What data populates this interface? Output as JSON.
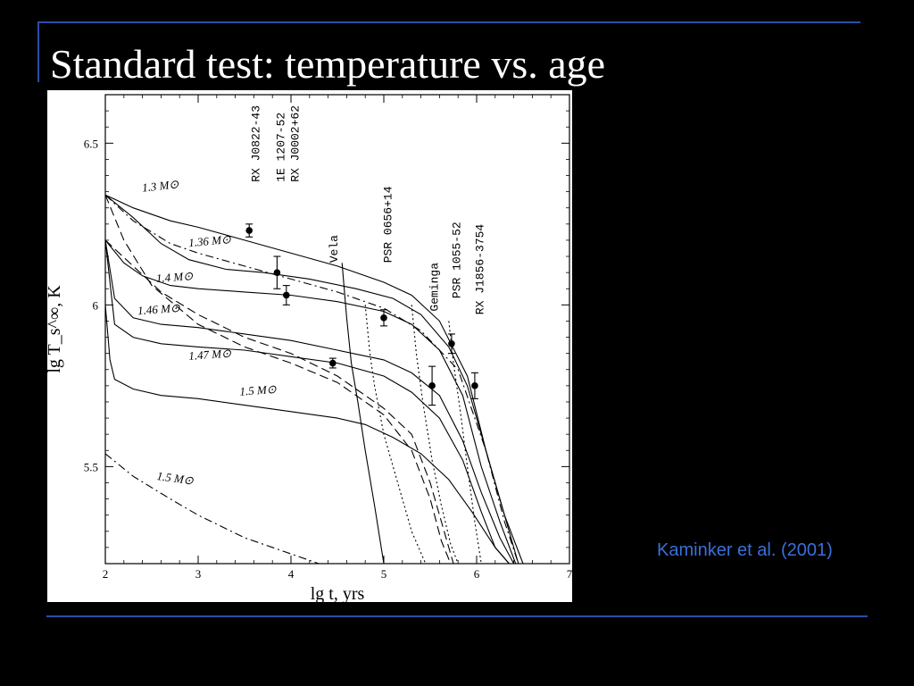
{
  "slide": {
    "title": "Standard test: temperature vs. age",
    "credit": "Kaminker et al. (2001)"
  },
  "colors": {
    "background": "#000000",
    "title": "#ffffff",
    "rule": "#2a4fa8",
    "credit": "#3b6fd8",
    "figure_bg": "#ffffff",
    "ink": "#000000"
  },
  "chart_data": {
    "type": "line",
    "title": "",
    "xlabel": "lg t, yrs",
    "ylabel": "lg T_s^∞, K",
    "xlim": [
      2,
      7
    ],
    "ylim": [
      5.2,
      6.65
    ],
    "xticks": [
      2,
      3,
      4,
      5,
      6,
      7
    ],
    "yticks": [
      5.5,
      6,
      6.5
    ],
    "grid": false,
    "series": [
      {
        "name": "1.3 M⊙",
        "style": "solid",
        "x": [
          2,
          2.3,
          2.7,
          3.0,
          3.5,
          4.0,
          4.5,
          5.0,
          5.3,
          5.6,
          5.9,
          6.1,
          6.3,
          6.5
        ],
        "y": [
          6.34,
          6.3,
          6.26,
          6.24,
          6.2,
          6.16,
          6.12,
          6.07,
          6.03,
          5.95,
          5.78,
          5.55,
          5.35,
          5.2
        ]
      },
      {
        "name": "1.36 M⊙",
        "style": "solid",
        "x": [
          2,
          2.3,
          2.6,
          2.9,
          3.3,
          3.7,
          4.2,
          4.7,
          5.1,
          5.4,
          5.7,
          5.9,
          6.1,
          6.3,
          6.45
        ],
        "y": [
          6.34,
          6.27,
          6.19,
          6.14,
          6.11,
          6.1,
          6.08,
          6.05,
          6.02,
          5.97,
          5.87,
          5.75,
          5.55,
          5.35,
          5.2
        ]
      },
      {
        "name": "1.4 M⊙",
        "style": "solid",
        "x": [
          2,
          2.2,
          2.4,
          2.7,
          3.0,
          3.5,
          4.0,
          4.5,
          5.0,
          5.3,
          5.6,
          5.85,
          6.05,
          6.25,
          6.42
        ],
        "y": [
          6.2,
          6.13,
          6.09,
          6.06,
          6.05,
          6.04,
          6.03,
          6.01,
          5.98,
          5.94,
          5.86,
          5.72,
          5.5,
          5.33,
          5.2
        ]
      },
      {
        "name": "1.46 M⊙",
        "style": "solid",
        "x": [
          2,
          2.1,
          2.3,
          2.6,
          3.0,
          3.5,
          4.0,
          4.5,
          5.0,
          5.3,
          5.6,
          5.85,
          6.05,
          6.25,
          6.4
        ],
        "y": [
          6.2,
          6.02,
          5.96,
          5.94,
          5.93,
          5.91,
          5.89,
          5.86,
          5.83,
          5.79,
          5.72,
          5.58,
          5.42,
          5.28,
          5.2
        ]
      },
      {
        "name": "1.47 M⊙",
        "style": "solid",
        "x": [
          2,
          2.1,
          2.3,
          2.6,
          3.0,
          3.5,
          4.0,
          4.5,
          5.0,
          5.3,
          5.6,
          5.85,
          6.05,
          6.2,
          6.35
        ],
        "y": [
          6.2,
          5.94,
          5.9,
          5.88,
          5.87,
          5.86,
          5.84,
          5.82,
          5.78,
          5.73,
          5.65,
          5.52,
          5.36,
          5.25,
          5.2
        ]
      },
      {
        "name": "1.5 M⊙",
        "style": "solid",
        "x": [
          2,
          2.05,
          2.1,
          2.3,
          2.6,
          3.0,
          3.5,
          4.0,
          4.5,
          4.8,
          5.1,
          5.4,
          5.7,
          5.95,
          6.2,
          6.35
        ],
        "y": [
          6.0,
          5.83,
          5.77,
          5.74,
          5.72,
          5.71,
          5.69,
          5.67,
          5.65,
          5.63,
          5.59,
          5.54,
          5.46,
          5.36,
          5.25,
          5.2
        ]
      },
      {
        "name": "1.5 M⊙",
        "style": "dash-dot",
        "x": [
          2,
          2.3,
          2.7,
          3.0,
          3.5,
          4.0,
          4.3
        ],
        "y": [
          5.54,
          5.47,
          5.4,
          5.35,
          5.28,
          5.23,
          5.2
        ]
      },
      {
        "name": "",
        "style": "dash-dot",
        "x": [
          2,
          2.3,
          2.7,
          3.0,
          3.5,
          4.0,
          4.5,
          5.0,
          5.4,
          5.8,
          6.1,
          6.3,
          6.45
        ],
        "y": [
          6.34,
          6.26,
          6.19,
          6.16,
          6.12,
          6.08,
          6.04,
          5.99,
          5.92,
          5.8,
          5.55,
          5.33,
          5.2
        ]
      },
      {
        "name": "",
        "style": "dashed",
        "x": [
          2,
          2.3,
          2.6,
          3.0,
          3.5,
          4.0,
          4.5,
          5.0,
          5.3,
          5.5,
          5.65,
          5.75
        ],
        "y": [
          6.2,
          6.12,
          6.04,
          5.97,
          5.9,
          5.85,
          5.78,
          5.68,
          5.6,
          5.45,
          5.3,
          5.2
        ]
      },
      {
        "name": "",
        "style": "dashed",
        "x": [
          2,
          2.2,
          2.5,
          3.0,
          3.5,
          4.0,
          4.5,
          5.0,
          5.3,
          5.5,
          5.62,
          5.72
        ],
        "y": [
          6.34,
          6.2,
          6.06,
          5.94,
          5.87,
          5.82,
          5.76,
          5.66,
          5.55,
          5.4,
          5.27,
          5.2
        ]
      },
      {
        "name": "Vela",
        "style": "solid",
        "x": [
          4.55,
          4.6,
          4.65,
          4.72,
          4.8,
          4.9,
          5.0
        ],
        "y": [
          6.13,
          5.96,
          5.82,
          5.7,
          5.55,
          5.38,
          5.2
        ]
      },
      {
        "name": "",
        "style": "dotted",
        "x": [
          4.8,
          4.85,
          4.9,
          5.0,
          5.15,
          5.3,
          5.45
        ],
        "y": [
          6.0,
          5.85,
          5.75,
          5.6,
          5.45,
          5.3,
          5.2
        ]
      },
      {
        "name": "",
        "style": "dotted",
        "x": [
          5.3,
          5.35,
          5.42,
          5.52,
          5.62,
          5.72,
          5.8
        ],
        "y": [
          6.0,
          5.85,
          5.7,
          5.52,
          5.38,
          5.26,
          5.2
        ]
      },
      {
        "name": "",
        "style": "dotted",
        "x": [
          5.7,
          5.75,
          5.82,
          5.9,
          5.98,
          6.05
        ],
        "y": [
          5.95,
          5.82,
          5.68,
          5.5,
          5.33,
          5.2
        ]
      }
    ],
    "points": [
      {
        "name": "RX J0822-43",
        "x": 3.55,
        "y": 6.23,
        "err": 0.02
      },
      {
        "name": "1E 1207-52",
        "x": 3.85,
        "y": 6.1,
        "err": 0.05
      },
      {
        "name": "RX J0002+62",
        "x": 3.95,
        "y": 6.03,
        "err": 0.03
      },
      {
        "name": "Vela",
        "x": 4.45,
        "y": 5.82,
        "err": 0.015
      },
      {
        "name": "PSR 0656+14",
        "x": 5.0,
        "y": 5.96,
        "err": 0.025
      },
      {
        "name": "Geminga",
        "x": 5.52,
        "y": 5.75,
        "err": 0.06
      },
      {
        "name": "PSR 1055-52",
        "x": 5.73,
        "y": 5.88,
        "err": 0.03
      },
      {
        "name": "RX J1856-3754",
        "x": 5.98,
        "y": 5.75,
        "err": 0.04
      }
    ],
    "point_labels": [
      "RX J0822-43",
      "1E 1207-52",
      "RX J0002+62",
      "Vela",
      "PSR 0656+14",
      "Geminga",
      "PSR 1055-52",
      "RX J1856-3754"
    ],
    "curve_labels": [
      "1.3 M⊙",
      "1.36 M⊙",
      "1.4 M⊙",
      "1.46 M⊙",
      "1.47 M⊙",
      "1.5 M⊙",
      "1.5 M⊙"
    ]
  }
}
